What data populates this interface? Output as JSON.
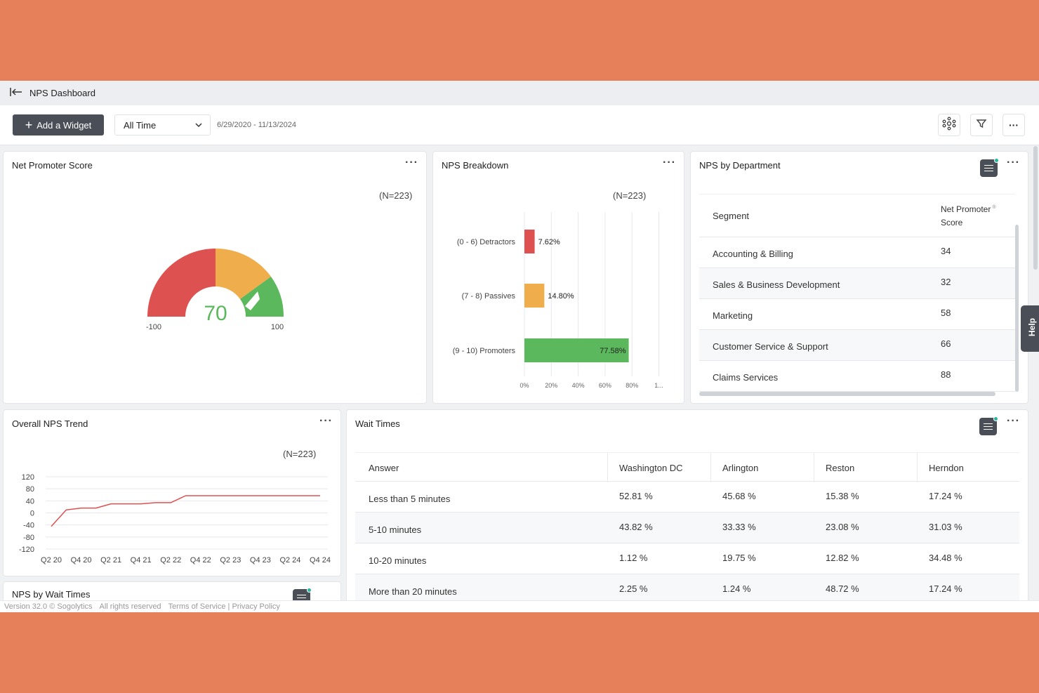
{
  "header": {
    "title": "NPS Dashboard"
  },
  "toolbar": {
    "add_widget_label": "Add a Widget",
    "time_filter": "All Time",
    "date_range": "6/29/2020 - 11/13/2024"
  },
  "nps_score": {
    "title": "Net Promoter Score",
    "n_label": "(N=223)",
    "value": "70",
    "min_label": "-100",
    "max_label": "100",
    "colors": {
      "detractor": "#dd5250",
      "passive": "#efae4b",
      "promoter": "#5cb85c"
    }
  },
  "nps_breakdown": {
    "title": "NPS Breakdown",
    "n_label": "(N=223)"
  },
  "nps_by_department": {
    "title": "NPS by Department",
    "columns": [
      "Segment",
      "Net Promoter",
      "Score"
    ],
    "rows": [
      {
        "segment": "Accounting & Billing",
        "score": "34"
      },
      {
        "segment": "Sales & Business Development",
        "score": "32"
      },
      {
        "segment": "Marketing",
        "score": "58"
      },
      {
        "segment": "Customer Service & Support",
        "score": "66"
      },
      {
        "segment": "Claims Services",
        "score": "88"
      }
    ]
  },
  "overall_trend": {
    "title": "Overall NPS Trend",
    "n_label": "(N=223)"
  },
  "wait_times": {
    "title": "Wait Times",
    "columns": [
      "Answer",
      "Washington DC",
      "Arlington",
      "Reston",
      "Herndon"
    ],
    "rows": [
      {
        "answer": "Less than 5 minutes",
        "dc": "52.81 %",
        "arlington": "45.68 %",
        "reston": "15.38 %",
        "herndon": "17.24 %"
      },
      {
        "answer": "5-10 minutes",
        "dc": "43.82 %",
        "arlington": "33.33 %",
        "reston": "23.08 %",
        "herndon": "31.03 %"
      },
      {
        "answer": "10-20 minutes",
        "dc": "1.12 %",
        "arlington": "19.75 %",
        "reston": "12.82 %",
        "herndon": "34.48 %"
      },
      {
        "answer": "More than 20 minutes",
        "dc": "2.25 %",
        "arlington": "1.24 %",
        "reston": "48.72 %",
        "herndon": "17.24 %"
      }
    ]
  },
  "partial_card": {
    "title": "NPS by Wait Times"
  },
  "footer": {
    "version": "Version 32.0 © Sogolytics",
    "rights": "All rights reserved",
    "links": "Terms of Service | Privacy Policy"
  },
  "help_label": "Help",
  "chart_data": [
    {
      "type": "bar",
      "orientation": "horizontal",
      "categories": [
        "(0 - 6) Detractors",
        "(7 - 8) Passives",
        "(9 - 10) Promoters"
      ],
      "values": [
        7.62,
        14.8,
        77.58
      ],
      "labels": [
        "7.62%",
        "14.80%",
        "77.58%"
      ],
      "colors": [
        "#dd5250",
        "#efae4b",
        "#5cb85c"
      ],
      "xticks": [
        "0%",
        "20%",
        "40%",
        "60%",
        "80%",
        "1..."
      ],
      "xlim": [
        0,
        100
      ],
      "grid": true
    },
    {
      "type": "line",
      "x": [
        "Q2 20",
        "Q3 20",
        "Q4 20",
        "Q1 21",
        "Q2 21",
        "Q3 21",
        "Q4 21",
        "Q1 22",
        "Q2 22",
        "Q3 22",
        "Q4 22",
        "Q1 23",
        "Q2 23",
        "Q3 23",
        "Q4 23",
        "Q1 24",
        "Q2 24",
        "Q3 24",
        "Q4 24"
      ],
      "xticks": [
        "Q2 20",
        "Q4 20",
        "Q2 21",
        "Q4 21",
        "Q2 22",
        "Q4 22",
        "Q2 23",
        "Q4 23",
        "Q2 24",
        "Q4 24"
      ],
      "series": [
        {
          "values": [
            -45,
            10,
            16,
            16,
            30,
            30,
            30,
            34,
            34,
            57,
            57,
            57,
            57,
            57,
            57,
            57,
            57,
            57,
            57
          ],
          "color": "#dd5250"
        }
      ],
      "yticks": [
        "120",
        "80",
        "40",
        "0",
        "-40",
        "-80",
        "-120"
      ],
      "ylim": [
        -120,
        120
      ],
      "grid": true
    }
  ]
}
